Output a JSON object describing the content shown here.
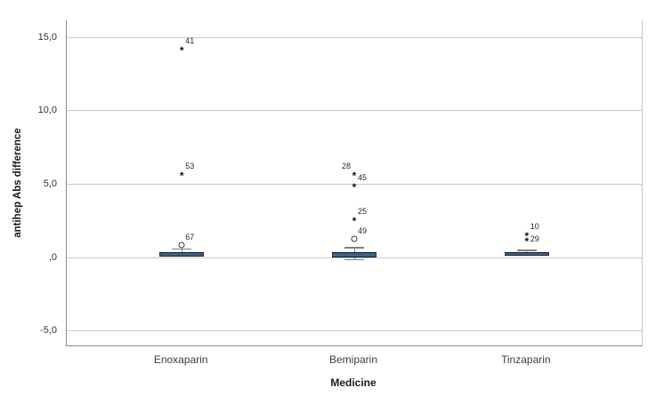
{
  "figure": {
    "background": "#ffffff",
    "colors": {
      "box_fill": "#2c6497",
      "box_border": "#0f1e33",
      "whisker": "#7f7f7f",
      "gridline": "#c9c9c9",
      "axis_line": "#8c8c8c",
      "tick_text": "#333333"
    }
  },
  "chart_data": {
    "type": "boxplot",
    "title": "",
    "xlabel": "Medicine",
    "ylabel": "antihep Abs difference",
    "ylim": [
      -5.97,
      16.15
    ],
    "grid": true,
    "legend": false,
    "y_ticks": [
      {
        "value": 15,
        "label": "15,0"
      },
      {
        "value": 10,
        "label": "10,0"
      },
      {
        "value": 5,
        "label": "5,0"
      },
      {
        "value": 0,
        "label": ",0"
      },
      {
        "value": -5,
        "label": "-5,0"
      }
    ],
    "categories": [
      "Enoxaparin",
      "Bemiparin",
      "Tinzaparin"
    ],
    "groups": [
      {
        "category": "Enoxaparin",
        "q1": 0.08,
        "median": 0.2,
        "q3": 0.35,
        "whisker_low": null,
        "whisker_high": 0.6,
        "outliers": [
          {
            "case": "67",
            "value": 0.85,
            "marker": "circle",
            "label_pos": "above-right"
          },
          {
            "case": "53",
            "value": 5.7,
            "marker": "asterisk",
            "label_pos": "above-right"
          },
          {
            "case": "41",
            "value": 14.2,
            "marker": "asterisk",
            "label_pos": "above-right"
          }
        ]
      },
      {
        "category": "Bemiparin",
        "q1": 0.03,
        "median": 0.2,
        "q3": 0.4,
        "whisker_low": -0.15,
        "whisker_high": 0.67,
        "outliers": [
          {
            "case": "49",
            "value": 1.27,
            "marker": "circle",
            "label_pos": "above-right"
          },
          {
            "case": "25",
            "value": 2.6,
            "marker": "asterisk",
            "label_pos": "above-right"
          },
          {
            "case": "45",
            "value": 4.9,
            "marker": "asterisk",
            "label_pos": "above-right"
          },
          {
            "case": "28",
            "value": 5.7,
            "marker": "asterisk",
            "label_pos": "above-left"
          }
        ]
      },
      {
        "category": "Tinzaparin",
        "q1": 0.15,
        "median": 0.25,
        "q3": 0.35,
        "whisker_low": null,
        "whisker_high": 0.5,
        "outliers": [
          {
            "case": "10",
            "value": 1.6,
            "marker": "asterisk",
            "label_pos": "above-right"
          },
          {
            "case": "29",
            "value": 1.2,
            "marker": "asterisk",
            "label_pos": "right"
          }
        ]
      }
    ]
  }
}
